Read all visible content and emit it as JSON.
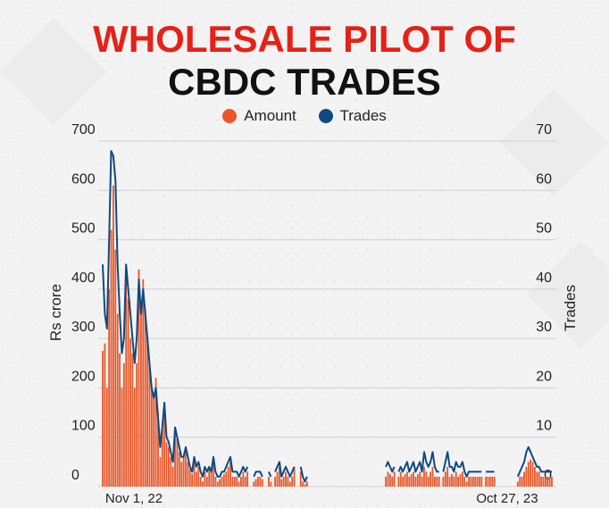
{
  "title": {
    "line1": "WHOLESALE PILOT OF",
    "line2": "CBDC TRADES"
  },
  "colors": {
    "amount": "#e8582a",
    "trades": "#0d4a82",
    "title_accent": "#e62117",
    "grid": "#cfcfcf"
  },
  "chart_data": {
    "type": "bar",
    "legend": [
      {
        "name": "Amount",
        "color": "#e8582a"
      },
      {
        "name": "Trades",
        "color": "#0d4a82"
      }
    ],
    "legend_position": "top",
    "grid": true,
    "ylabel": "Rs crore",
    "y2label": "Trades",
    "ylim": [
      0,
      700
    ],
    "y2lim": [
      0,
      70
    ],
    "yticks": [
      "700",
      "600",
      "500",
      "400",
      "300",
      "200",
      "100",
      "0"
    ],
    "y2ticks": [
      "70",
      "60",
      "50",
      "40",
      "30",
      "20",
      "10",
      "0"
    ],
    "xtick_labels": [
      "Nov 1, 22",
      "Oct 27, 23"
    ],
    "series": [
      {
        "name": "Amount",
        "kind": "bar",
        "values": [
          275,
          290,
          200,
          400,
          520,
          610,
          480,
          350,
          270,
          200,
          250,
          450,
          380,
          300,
          270,
          200,
          250,
          440,
          350,
          420,
          360,
          300,
          250,
          200,
          180,
          220,
          150,
          60,
          120,
          170,
          90,
          80,
          60,
          40,
          120,
          100,
          70,
          50,
          60,
          80,
          50,
          35,
          25,
          55,
          30,
          40,
          20,
          10,
          30,
          20,
          40,
          30,
          50,
          20,
          10,
          15,
          20,
          25,
          30,
          40,
          50,
          20,
          20,
          20,
          10,
          20,
          30,
          20,
          30,
          null,
          null,
          10,
          15,
          20,
          20,
          15,
          null,
          null,
          20,
          10,
          null,
          20,
          30,
          40,
          15,
          20,
          30,
          20,
          10,
          20,
          40,
          null,
          null,
          30,
          10,
          5,
          10,
          null,
          null,
          null,
          null,
          null,
          null,
          null,
          null,
          null,
          null,
          null,
          null,
          null,
          null,
          null,
          null,
          null,
          null,
          null,
          null,
          null,
          null,
          null,
          null,
          null,
          null,
          null,
          null,
          null,
          null,
          null,
          null,
          null,
          null,
          null,
          null,
          20,
          30,
          25,
          20,
          30,
          null,
          20,
          30,
          20,
          25,
          30,
          20,
          25,
          30,
          20,
          25,
          30,
          20,
          40,
          30,
          20,
          30,
          40,
          20,
          20,
          20,
          null,
          20,
          30,
          40,
          20,
          25,
          20,
          30,
          20,
          25,
          30,
          20,
          10,
          20,
          20,
          20,
          20,
          20,
          20,
          20,
          null,
          20,
          20,
          20,
          20,
          20,
          null,
          null,
          null,
          null,
          null,
          null,
          null,
          null,
          null,
          null,
          10,
          20,
          20,
          30,
          40,
          50,
          55,
          50,
          40,
          30,
          30,
          20,
          20,
          20,
          20,
          20,
          20
        ]
      },
      {
        "name": "Trades",
        "kind": "line",
        "values": [
          45,
          35,
          32,
          50,
          68,
          67,
          62,
          45,
          35,
          27,
          30,
          45,
          40,
          35,
          30,
          25,
          30,
          42,
          35,
          40,
          35,
          30,
          25,
          20,
          18,
          20,
          14,
          8,
          12,
          17,
          10,
          9,
          7,
          5,
          12,
          10,
          8,
          6,
          6,
          8,
          6,
          4,
          3,
          6,
          4,
          5,
          3,
          2,
          4,
          3,
          4,
          3,
          6,
          3,
          2,
          2,
          3,
          3,
          4,
          5,
          6,
          3,
          3,
          3,
          2,
          3,
          4,
          3,
          4,
          null,
          null,
          2,
          3,
          3,
          3,
          2,
          null,
          null,
          3,
          2,
          null,
          3,
          4,
          5,
          2,
          3,
          4,
          3,
          2,
          3,
          4,
          null,
          null,
          4,
          2,
          1,
          2,
          null,
          null,
          null,
          null,
          null,
          null,
          null,
          null,
          null,
          null,
          null,
          null,
          null,
          null,
          null,
          null,
          null,
          null,
          null,
          null,
          null,
          null,
          null,
          null,
          null,
          null,
          null,
          null,
          null,
          null,
          null,
          null,
          null,
          null,
          null,
          null,
          4,
          5,
          4,
          3,
          4,
          null,
          3,
          4,
          3,
          4,
          5,
          3,
          4,
          5,
          3,
          4,
          5,
          3,
          7,
          5,
          4,
          5,
          7,
          4,
          3,
          3,
          null,
          3,
          5,
          7,
          4,
          4,
          3,
          5,
          4,
          4,
          5,
          3,
          2,
          3,
          3,
          3,
          3,
          3,
          3,
          3,
          null,
          3,
          3,
          3,
          3,
          3,
          null,
          null,
          null,
          null,
          null,
          null,
          null,
          null,
          null,
          null,
          2,
          3,
          4,
          5,
          7,
          8,
          7,
          6,
          5,
          4,
          4,
          3,
          3,
          3,
          3,
          3,
          3
        ]
      }
    ]
  }
}
